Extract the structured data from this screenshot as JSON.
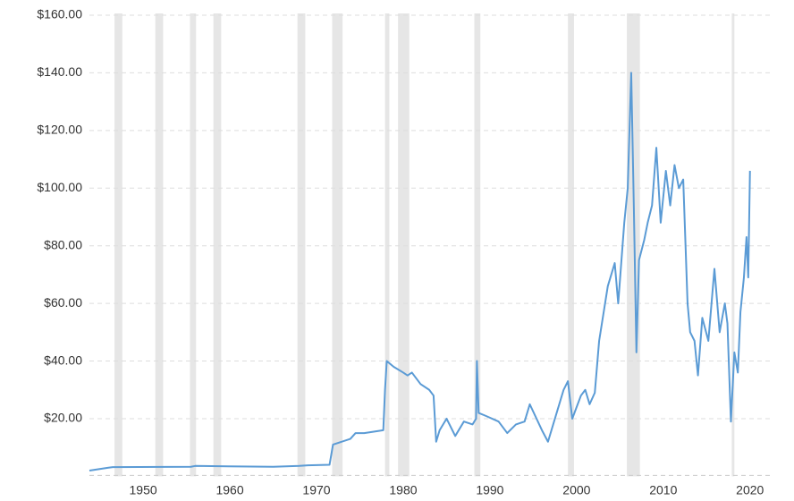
{
  "chart_data": {
    "type": "line",
    "xlim": [
      1943.8,
      2022.5
    ],
    "xticks": [
      1950,
      1960,
      1970,
      1980,
      1990,
      2000,
      2010,
      2020
    ],
    "ylim": [
      0,
      160
    ],
    "yticks": [
      {
        "value": 20,
        "label": "$20.00"
      },
      {
        "value": 40,
        "label": "$40.00"
      },
      {
        "value": 60,
        "label": "$60.00"
      },
      {
        "value": 80,
        "label": "$80.00"
      },
      {
        "value": 100,
        "label": "$100.00"
      },
      {
        "value": 120,
        "label": "$120.00"
      },
      {
        "value": 140,
        "label": "$140.00"
      },
      {
        "value": 160,
        "label": "$160.00"
      }
    ],
    "grid": true,
    "shaded_ranges": [
      [
        1946.7,
        1947.6
      ],
      [
        1951.4,
        1952.3
      ],
      [
        1955.4,
        1956.1
      ],
      [
        1958.1,
        1959.0
      ],
      [
        1967.8,
        1968.7
      ],
      [
        1971.8,
        1973.0
      ],
      [
        1977.9,
        1978.4
      ],
      [
        1979.4,
        1980.7
      ],
      [
        1988.2,
        1988.9
      ],
      [
        1999.0,
        1999.7
      ],
      [
        2005.8,
        2007.3
      ],
      [
        2017.9,
        2018.2
      ]
    ],
    "shade_color": "#e6e6e6",
    "series": [
      {
        "color": "#5b9bd5",
        "x": [
          1943.8,
          1946,
          1946.5,
          1955.5,
          1956,
          1965,
          1968,
          1969,
          1971.5,
          1971.9,
          1973.9,
          1974.5,
          1975.5,
          1977.7,
          1977.9,
          1978.1,
          1978.9,
          1980,
          1980.5,
          1981,
          1982,
          1983,
          1983.5,
          1983.8,
          1984.2,
          1985,
          1986,
          1987,
          1988,
          1988.4,
          1988.5,
          1988.7,
          1989.5,
          1991,
          1992,
          1993,
          1994,
          1994.6,
          1996,
          1996.7,
          1997.5,
          1998.5,
          1999,
          1999.5,
          2000.5,
          2001,
          2001.5,
          2002.1,
          2002.6,
          2003.6,
          2004.4,
          2004.8,
          2005.5,
          2005.9,
          2006.3,
          2006.6,
          2006.9,
          2007.2,
          2007.8,
          2008.2,
          2008.7,
          2009.2,
          2009.7,
          2010.3,
          2010.8,
          2011.3,
          2011.8,
          2012.3,
          2012.8,
          2013.1,
          2013.6,
          2014.0,
          2014.5,
          2015.2,
          2015.9,
          2016.5,
          2017.1,
          2017.4,
          2017.8,
          2018.2,
          2018.6,
          2018.9,
          2019.3,
          2019.6,
          2019.8,
          2020.0
        ],
        "values": [
          2,
          3,
          3.2,
          3.3,
          3.6,
          3.3,
          3.6,
          3.8,
          4,
          11,
          13,
          15,
          15,
          16,
          30,
          40,
          38,
          36,
          35,
          36,
          32,
          30,
          28,
          12,
          16,
          20,
          14,
          19,
          18,
          20,
          40,
          22,
          21,
          19,
          15,
          18,
          19,
          25,
          16,
          12,
          20,
          30,
          33,
          20,
          28,
          30,
          25,
          29,
          47,
          66,
          74,
          60,
          88,
          100,
          140,
          94,
          43,
          75,
          82,
          88,
          94,
          114,
          88,
          106,
          94,
          108,
          100,
          103,
          60,
          50,
          47,
          35,
          55,
          47,
          72,
          50,
          60,
          53,
          19,
          43,
          36,
          57,
          69,
          83,
          69,
          106
        ]
      }
    ]
  }
}
